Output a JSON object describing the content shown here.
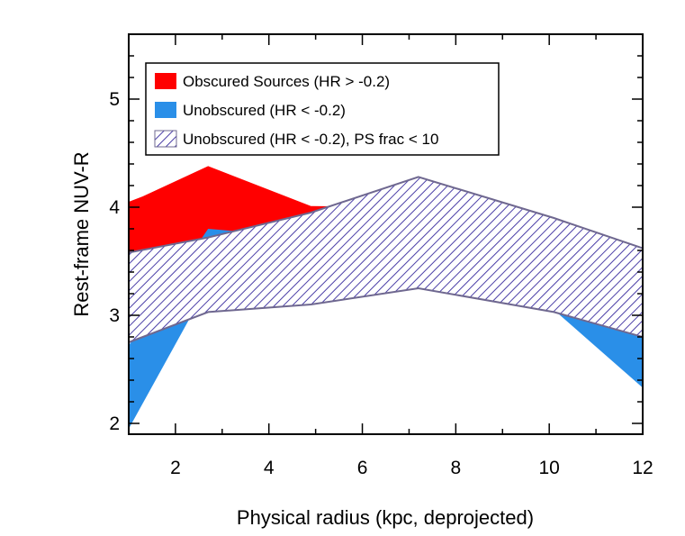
{
  "chart_data": {
    "type": "area",
    "title": "",
    "xlabel": "Physical radius (kpc, deprojected)",
    "ylabel": "Rest-frame NUV-R",
    "xlim": [
      1,
      12
    ],
    "ylim": [
      1.9,
      5.6
    ],
    "xticks": [
      2,
      4,
      6,
      8,
      10,
      12
    ],
    "yticks": [
      2,
      3,
      4,
      5
    ],
    "legend_position": "top-left",
    "series": [
      {
        "name": "Obscured Sources (HR > -0.2)",
        "style": "solid",
        "color": "#ff0000",
        "upper": [
          [
            1,
            4.05
          ],
          [
            1.3,
            4.1
          ],
          [
            2.7,
            4.38
          ],
          [
            4.9,
            4.01
          ],
          [
            7.2,
            4.0
          ],
          [
            12,
            3.5
          ]
        ],
        "lower": [
          [
            1,
            3.37
          ],
          [
            2.7,
            3.63
          ],
          [
            4.9,
            3.47
          ],
          [
            7.2,
            3.72
          ],
          [
            12,
            2.98
          ]
        ]
      },
      {
        "name": "Unobscured (HR < -0.2)",
        "style": "solid",
        "color": "#2a8fe8",
        "upper": [
          [
            1,
            2.72
          ],
          [
            2.7,
            3.8
          ],
          [
            4.9,
            3.72
          ],
          [
            7.2,
            4.27
          ],
          [
            10.1,
            3.67
          ],
          [
            12,
            3.08
          ]
        ],
        "lower": [
          [
            1,
            1.95
          ],
          [
            2.7,
            3.28
          ],
          [
            4.9,
            3.32
          ],
          [
            7.2,
            3.57
          ],
          [
            10.1,
            3.05
          ],
          [
            12,
            2.33
          ]
        ]
      },
      {
        "name": "Unobscured (HR < -0.2), PS frac < 10",
        "style": "hatched",
        "color": "#4b3fa7",
        "upper": [
          [
            1,
            3.58
          ],
          [
            2.7,
            3.72
          ],
          [
            4.9,
            3.95
          ],
          [
            7.2,
            4.28
          ],
          [
            10.1,
            3.9
          ],
          [
            12,
            3.62
          ]
        ],
        "lower": [
          [
            1,
            2.75
          ],
          [
            2.7,
            3.03
          ],
          [
            4.9,
            3.1
          ],
          [
            7.2,
            3.25
          ],
          [
            10.1,
            3.03
          ],
          [
            12,
            2.8
          ]
        ]
      }
    ]
  }
}
